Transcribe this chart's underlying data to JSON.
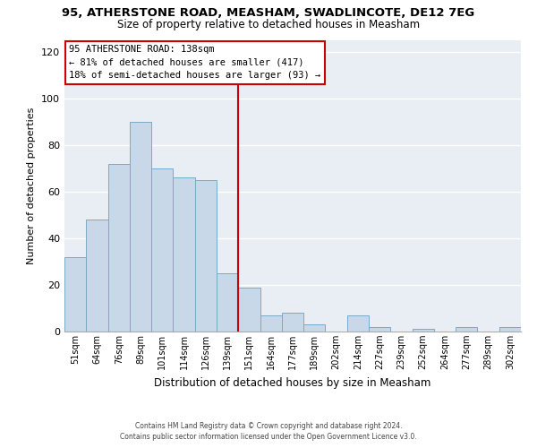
{
  "title1": "95, ATHERSTONE ROAD, MEASHAM, SWADLINCOTE, DE12 7EG",
  "title2": "Size of property relative to detached houses in Measham",
  "xlabel": "Distribution of detached houses by size in Measham",
  "ylabel": "Number of detached properties",
  "bar_labels": [
    "51sqm",
    "64sqm",
    "76sqm",
    "89sqm",
    "101sqm",
    "114sqm",
    "126sqm",
    "139sqm",
    "151sqm",
    "164sqm",
    "177sqm",
    "189sqm",
    "202sqm",
    "214sqm",
    "227sqm",
    "239sqm",
    "252sqm",
    "264sqm",
    "277sqm",
    "289sqm",
    "302sqm"
  ],
  "bar_heights": [
    32,
    48,
    72,
    90,
    70,
    66,
    65,
    25,
    19,
    7,
    8,
    3,
    0,
    7,
    2,
    0,
    1,
    0,
    2,
    0,
    2
  ],
  "bar_color": "#c8d8e8",
  "bar_edge_color": "#7aaac8",
  "vline_x": 7.5,
  "vline_color": "#cc0000",
  "ylim": [
    0,
    125
  ],
  "yticks": [
    0,
    20,
    40,
    60,
    80,
    100,
    120
  ],
  "annotation_title": "95 ATHERSTONE ROAD: 138sqm",
  "annotation_line1": "← 81% of detached houses are smaller (417)",
  "annotation_line2": "18% of semi-detached houses are larger (93) →",
  "annotation_box_color": "#ffffff",
  "annotation_box_edge": "#cc0000",
  "footer1": "Contains HM Land Registry data © Crown copyright and database right 2024.",
  "footer2": "Contains public sector information licensed under the Open Government Licence v3.0.",
  "bg_color": "#e8eef4",
  "grid_color": "#ffffff"
}
